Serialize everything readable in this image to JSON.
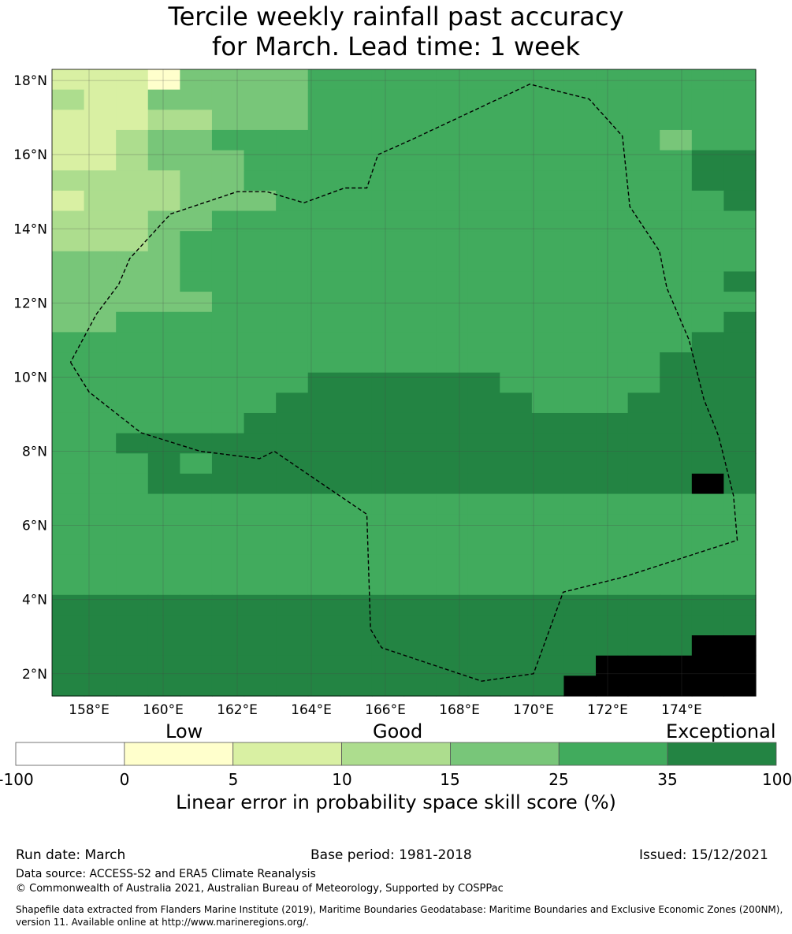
{
  "title": {
    "line1": "Tercile weekly rainfall past accuracy",
    "line2": "for March. Lead time: 1 week"
  },
  "map": {
    "lon_range": [
      157,
      176
    ],
    "lat_range": [
      1.4,
      18.3
    ],
    "grid_step": 0.833,
    "lat_ticks": [
      {
        "value": 18,
        "label": "18°N"
      },
      {
        "value": 16,
        "label": "16°N"
      },
      {
        "value": 14,
        "label": "14°N"
      },
      {
        "value": 12,
        "label": "12°N"
      },
      {
        "value": 10,
        "label": "10°N"
      },
      {
        "value": 8,
        "label": "8°N"
      },
      {
        "value": 6,
        "label": "6°N"
      },
      {
        "value": 4,
        "label": "4°N"
      },
      {
        "value": 2,
        "label": "2°N"
      }
    ],
    "lon_ticks": [
      {
        "value": 158,
        "label": "158°E"
      },
      {
        "value": 160,
        "label": "160°E"
      },
      {
        "value": 162,
        "label": "162°E"
      },
      {
        "value": 164,
        "label": "164°E"
      },
      {
        "value": 166,
        "label": "166°E"
      },
      {
        "value": 168,
        "label": "168°E"
      },
      {
        "value": 170,
        "label": "170°E"
      },
      {
        "value": 172,
        "label": "172°E"
      },
      {
        "value": 174,
        "label": "174°E"
      }
    ],
    "grid": [
      "2221444455555555555555",
      "3224444455555555555555",
      "2223344455555555555555",
      "2234455555555555555455",
      "2234445555555555555566",
      "3333445555555555555566",
      "2333444555555555555556",
      "3334455555555555555555",
      "3334555555555555555555",
      "4444555555555555555555",
      "4444555555555555555556",
      "4444455555555555555555",
      "4455555555555555555556",
      "5555555555555555555566",
      "5555555555555555555666",
      "5555555566666655555666",
      "5555555666666665556666",
      "5555556666666666666666",
      "5566666666666666666666",
      "5556566666666666666666",
      "5556666666666666666676",
      "5555555555555555555555",
      "5555555555555555555555",
      "5555555555555555555555",
      "5555555555555555555555",
      "5555555555555555555555",
      "6666666666666666666666",
      "6666666666666666666666",
      "6666666666666666666677",
      "6666666666666666677777",
      "6666666666666666777777"
    ],
    "eez_boundary": [
      [
        157.5,
        10.4
      ],
      [
        158.0,
        9.6
      ],
      [
        159.4,
        8.5
      ],
      [
        161.0,
        8.0
      ],
      [
        162.6,
        7.8
      ],
      [
        163.0,
        8.0
      ],
      [
        165.5,
        6.3
      ],
      [
        165.6,
        3.2
      ],
      [
        165.9,
        2.7
      ],
      [
        168.6,
        1.8
      ],
      [
        170.0,
        2.0
      ],
      [
        170.8,
        4.2
      ],
      [
        172.4,
        4.6
      ],
      [
        175.5,
        5.6
      ],
      [
        175.4,
        6.8
      ],
      [
        175.0,
        8.4
      ],
      [
        174.6,
        9.4
      ],
      [
        174.2,
        11.0
      ],
      [
        173.6,
        12.4
      ],
      [
        173.4,
        13.4
      ],
      [
        172.6,
        14.6
      ],
      [
        172.4,
        16.5
      ],
      [
        171.5,
        17.5
      ],
      [
        169.9,
        17.9
      ],
      [
        166.7,
        16.4
      ],
      [
        165.8,
        16.0
      ],
      [
        165.5,
        15.1
      ],
      [
        164.9,
        15.1
      ],
      [
        163.8,
        14.7
      ],
      [
        162.8,
        15.0
      ],
      [
        162.0,
        15.0
      ],
      [
        160.2,
        14.4
      ],
      [
        159.1,
        13.2
      ],
      [
        158.8,
        12.5
      ],
      [
        158.2,
        11.7
      ],
      [
        157.5,
        10.4
      ]
    ]
  },
  "legend": {
    "category_labels": [
      "Low",
      "Good",
      "Exceptional"
    ],
    "bin_labels": [
      "-100",
      "0",
      "5",
      "10",
      "15",
      "25",
      "35",
      "100"
    ],
    "colors": [
      "#ffffff",
      "#ffffcc",
      "#d9f0a3",
      "#addd8e",
      "#78c679",
      "#41ab5d",
      "#238443"
    ],
    "title": "Linear error in probability space skill score (%)"
  },
  "footer": {
    "run_date": "Run date: March",
    "base_period": "Base period: 1981-2018",
    "issued": "Issued: 15/12/2021",
    "data_source": "Data source: ACCESS-S2 and ERA5 Climate Reanalysis",
    "copyright": "© Commonwealth of Australia 2021, Australian Bureau of Meteorology, Supported by COSPPac",
    "shapefile_line1": "Shapefile data extracted from Flanders Marine Institute (2019), Maritime Boundaries Geodatabase: Maritime Boundaries and Exclusive Economic Zones (200NM),",
    "shapefile_line2": "version 11. Available online at http://www.marineregions.org/."
  }
}
